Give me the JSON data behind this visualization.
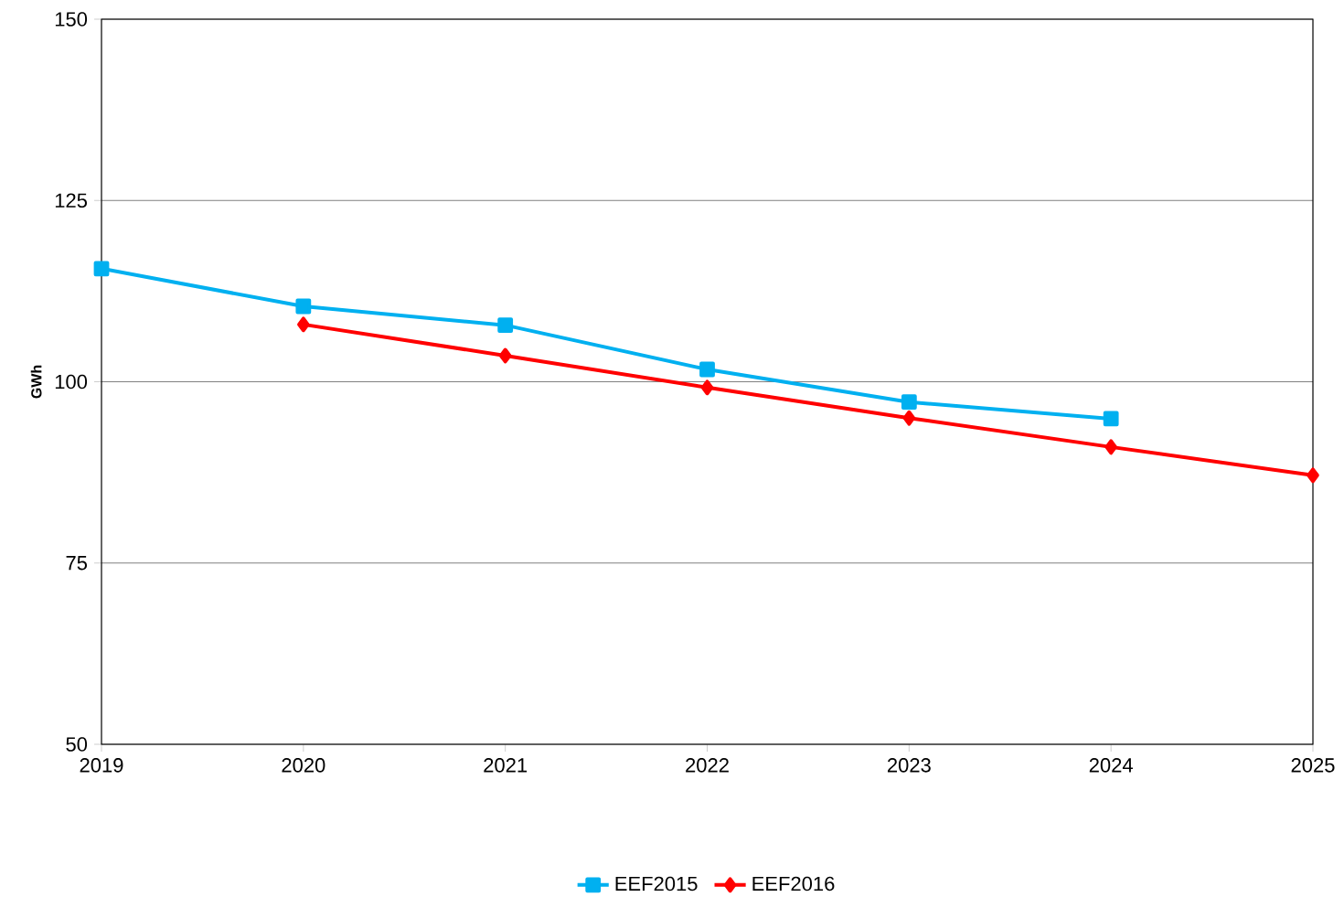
{
  "chart_data": {
    "type": "line",
    "ylabel": "GWh",
    "x": [
      2019,
      2020,
      2021,
      2022,
      2023,
      2024,
      2025
    ],
    "series": [
      {
        "name": "EEF2015",
        "color": "#00b0f0",
        "marker": "square",
        "values": [
          115.6,
          110.4,
          107.8,
          101.7,
          97.2,
          94.9,
          null
        ]
      },
      {
        "name": "EEF2016",
        "color": "#ff0000",
        "marker": "diamond",
        "values": [
          null,
          107.9,
          103.6,
          99.2,
          95.0,
          91.0,
          87.1
        ]
      }
    ],
    "xlim": [
      2019,
      2025
    ],
    "xticks": [
      2019,
      2020,
      2021,
      2022,
      2023,
      2024,
      2025
    ],
    "ylim": [
      50,
      150
    ],
    "yticks": [
      50,
      75,
      100,
      125,
      150
    ],
    "grid": "y",
    "legend": "bottom",
    "line_style": "solid"
  }
}
